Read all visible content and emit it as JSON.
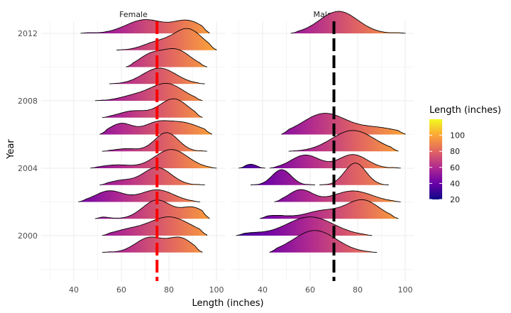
{
  "chart_data": {
    "type": "ridgeline",
    "xlabel": "Length (inches)",
    "ylabel": "Year",
    "x_ticks": [
      40,
      60,
      80,
      100
    ],
    "y_ticks": [
      2000,
      2004,
      2008,
      2012
    ],
    "xlim": [
      28,
      104
    ],
    "ylim": [
      1998.2,
      2012.9
    ],
    "grid": true,
    "facets": [
      {
        "name": "Female",
        "mean_line": 75,
        "mean_line_color": "#ff0000",
        "ridges": [
          {
            "year": 2012,
            "min": 43,
            "max": 97,
            "peaks": [
              [
                70,
                0.62,
                8
              ],
              [
                88,
                0.55,
                6
              ]
            ]
          },
          {
            "year": 2011,
            "min": 58,
            "max": 100,
            "peaks": [
              [
                88,
                0.95,
                6
              ],
              [
                75,
                0.35,
                6
              ]
            ]
          },
          {
            "year": 2010,
            "min": 62,
            "max": 96,
            "peaks": [
              [
                83,
                0.78,
                6
              ],
              [
                72,
                0.5,
                5
              ]
            ]
          },
          {
            "year": 2009,
            "min": 55,
            "max": 95,
            "peaks": [
              [
                76,
                0.72,
                7
              ]
            ]
          },
          {
            "year": 2008,
            "min": 49,
            "max": 94,
            "peaks": [
              [
                79,
                0.78,
                7
              ],
              [
                65,
                0.2,
                6
              ]
            ]
          },
          {
            "year": 2007,
            "min": 52,
            "max": 94,
            "peaks": [
              [
                82,
                0.85,
                6
              ],
              [
                65,
                0.3,
                6
              ]
            ]
          },
          {
            "year": 2006,
            "min": 51,
            "max": 98,
            "peaks": [
              [
                60,
                0.5,
                5
              ],
              [
                85,
                0.55,
                8
              ],
              [
                74,
                0.35,
                5
              ]
            ]
          },
          {
            "year": 2005,
            "min": 52,
            "max": 96,
            "peaks": [
              [
                79,
                0.85,
                5
              ],
              [
                62,
                0.12,
                5
              ]
            ]
          },
          {
            "year": 2004,
            "min": 47,
            "max": 100,
            "peaks": [
              [
                81,
                0.85,
                7
              ],
              [
                58,
                0.15,
                6
              ]
            ]
          },
          {
            "year": 2003,
            "min": 51,
            "max": 95,
            "peaks": [
              [
                75,
                0.8,
                6
              ],
              [
                60,
                0.2,
                5
              ]
            ]
          },
          {
            "year": 2002,
            "min": 42,
            "max": 93,
            "peaks": [
              [
                55,
                0.5,
                6
              ],
              [
                75,
                0.55,
                7
              ]
            ]
          },
          {
            "year": 2001,
            "min": 49,
            "max": 97,
            "peaks": [
              [
                75,
                0.85,
                6
              ],
              [
                90,
                0.5,
                5
              ],
              [
                52,
                0.08,
                3
              ]
            ]
          },
          {
            "year": 2000,
            "min": 52,
            "max": 96,
            "peaks": [
              [
                80,
                0.85,
                9
              ],
              [
                62,
                0.2,
                6
              ]
            ]
          },
          {
            "year": 1999,
            "min": 52,
            "max": 94,
            "peaks": [
              [
                72,
                0.68,
                6
              ],
              [
                85,
                0.62,
                5
              ]
            ]
          }
        ]
      },
      {
        "name": "Male",
        "mean_line": 70,
        "mean_line_color": "#000000",
        "ridges": [
          {
            "year": 2012,
            "min": 52,
            "max": 100,
            "peaks": [
              [
                72,
                1.0,
                8
              ]
            ]
          },
          {
            "year": 2006,
            "min": 48,
            "max": 100,
            "peaks": [
              [
                66,
                0.95,
                9
              ],
              [
                88,
                0.3,
                9
              ]
            ]
          },
          {
            "year": 2005,
            "min": 51,
            "max": 97,
            "peaks": [
              [
                78,
                0.95,
                9
              ]
            ]
          },
          {
            "year": 2004,
            "min": 30,
            "max": 41,
            "peaks": [
              [
                35,
                0.18,
                2.5
              ]
            ]
          },
          {
            "year": 2004,
            "min": 43,
            "max": 98,
            "peaks": [
              [
                58,
                0.6,
                6
              ],
              [
                78,
                0.62,
                6
              ]
            ]
          },
          {
            "year": 2003,
            "min": 35,
            "max": 62,
            "peaks": [
              [
                48,
                0.7,
                4
              ]
            ]
          },
          {
            "year": 2003,
            "min": 64,
            "max": 93,
            "peaks": [
              [
                79,
                1.0,
                4.5
              ]
            ]
          },
          {
            "year": 2002,
            "min": 45,
            "max": 98,
            "peaks": [
              [
                56,
                0.55,
                5
              ],
              [
                78,
                0.5,
                8
              ]
            ]
          },
          {
            "year": 2001,
            "min": 39,
            "max": 97,
            "peaks": [
              [
                82,
                0.85,
                7
              ],
              [
                45,
                0.15,
                6
              ],
              [
                65,
                0.35,
                7
              ]
            ]
          },
          {
            "year": 2000,
            "min": 29,
            "max": 86,
            "peaks": [
              [
                60,
                0.85,
                10
              ],
              [
                35,
                0.1,
                5
              ]
            ]
          },
          {
            "year": 1999,
            "min": 43,
            "max": 88,
            "peaks": [
              [
                62,
                1.0,
                9
              ]
            ]
          }
        ]
      }
    ],
    "legend": {
      "title": "Length (inches)",
      "placement": "right",
      "range": [
        20,
        120
      ],
      "ticks": [
        20,
        40,
        60,
        80,
        100
      ],
      "colors": [
        "#0d0887",
        "#6a00a8",
        "#b12a90",
        "#e16462",
        "#fca636",
        "#f0f921"
      ]
    }
  }
}
